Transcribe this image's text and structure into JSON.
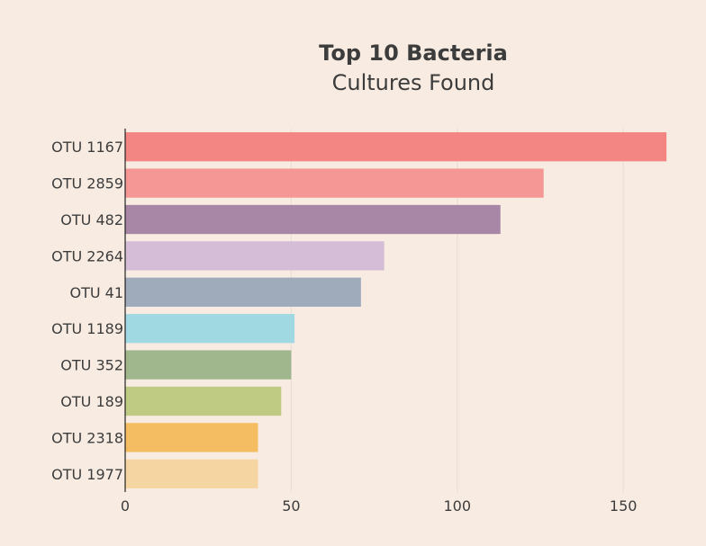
{
  "chart_data": {
    "type": "bar",
    "orientation": "horizontal",
    "title": "Top 10 Bacteria",
    "subtitle": "Cultures Found",
    "xlabel": "",
    "ylabel": "",
    "categories": [
      "OTU 1167",
      "OTU 2859",
      "OTU 482",
      "OTU 2264",
      "OTU 41",
      "OTU 1189",
      "OTU 352",
      "OTU 189",
      "OTU 2318",
      "OTU 1977"
    ],
    "values": [
      163,
      126,
      113,
      78,
      71,
      51,
      50,
      47,
      40,
      40
    ],
    "colors": [
      "#f38683",
      "#f59795",
      "#a886a6",
      "#d5bdd7",
      "#9faabb",
      "#a0d9e2",
      "#a0b68c",
      "#bfcb83",
      "#f5bd62",
      "#f5d5a1"
    ],
    "xlim": [
      0,
      165
    ],
    "xticks": [
      0,
      50,
      100,
      150
    ],
    "grid": true,
    "legend": "none",
    "background": "#f8ece2"
  }
}
